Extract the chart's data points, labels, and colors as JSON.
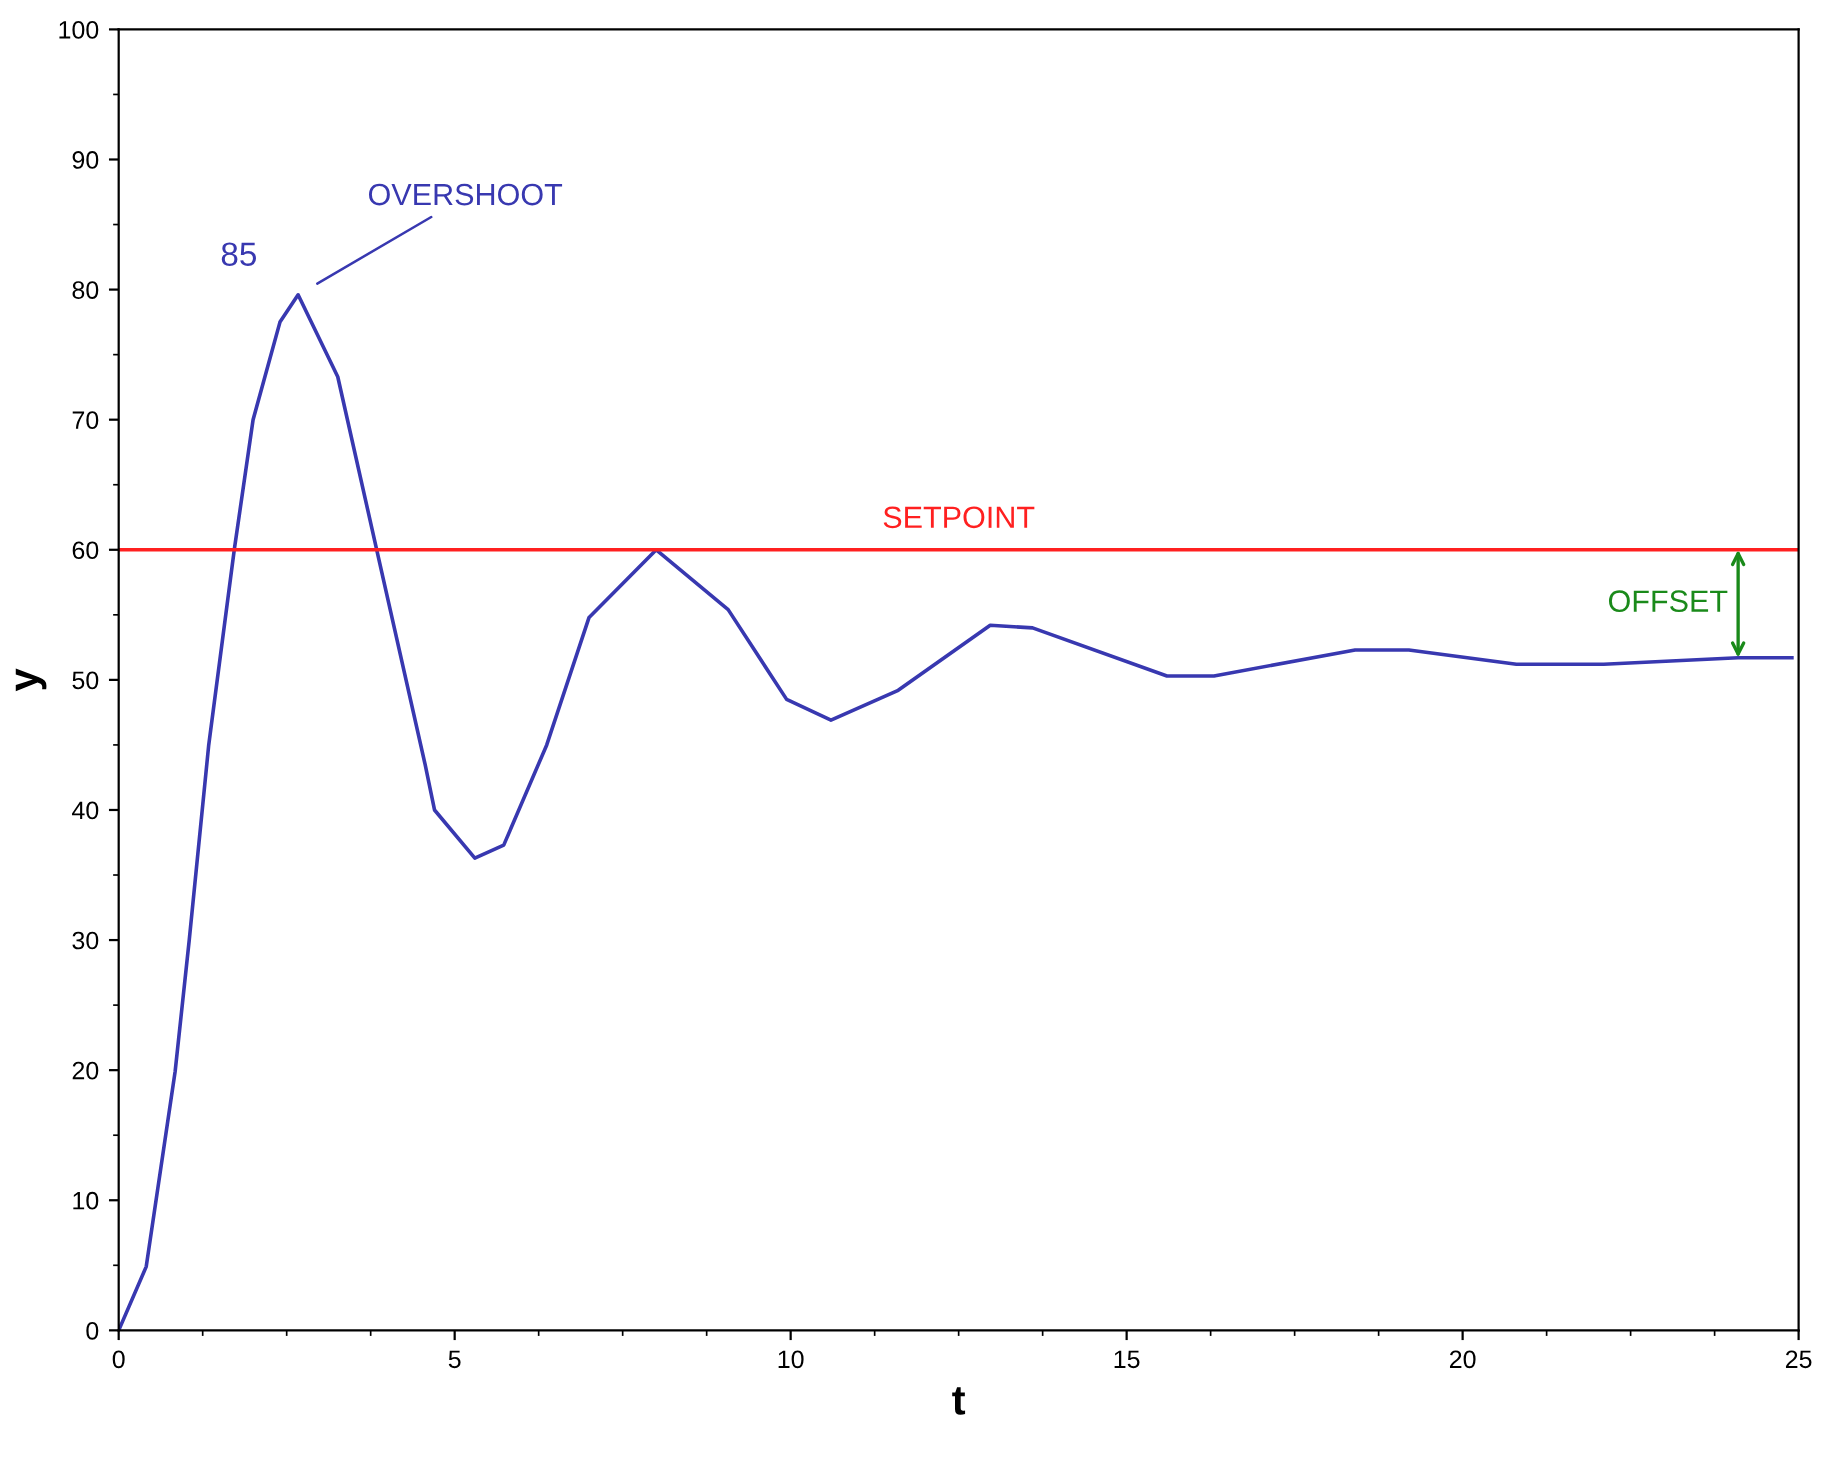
{
  "chart_data": {
    "type": "line",
    "xlabel": "t",
    "ylabel": "y",
    "xlim": [
      0,
      25
    ],
    "xticks": [
      0,
      5,
      10,
      15,
      20,
      25
    ],
    "ylim": [
      0,
      100
    ],
    "yticks": [
      0,
      10,
      20,
      30,
      40,
      50,
      60,
      70,
      80,
      90,
      100
    ],
    "grid": false,
    "legend": false,
    "marker": "none",
    "line_style": "solid",
    "x": [
      0,
      0.41,
      0.84,
      1.05,
      1.34,
      1.72,
      2.0,
      2.4,
      2.67,
      3.26,
      3.84,
      4.56,
      4.7,
      5.3,
      5.73,
      6.37,
      7.0,
      8.0,
      9.07,
      9.94,
      10.6,
      11.6,
      12.97,
      13.6,
      15.6,
      16.3,
      18.4,
      19.2,
      20.8,
      22.1,
      24.1,
      24.9
    ],
    "series": [
      {
        "color": "#3838b0",
        "values": [
          0,
          4.9,
          19.9,
          30,
          45,
          60,
          70,
          77.5,
          79.6,
          73.3,
          60,
          43.5,
          40,
          36.3,
          37.3,
          45,
          54.8,
          60,
          55.4,
          48.5,
          46.9,
          49.2,
          54.2,
          54,
          50.3,
          50.3,
          52.3,
          52.3,
          51.2,
          51.2,
          51.7,
          51.7
        ]
      }
    ],
    "ref_lines": [
      {
        "axis": "y",
        "value": 60,
        "label": "SETPOINT",
        "color": "#ff2020",
        "line_style": "solid"
      }
    ],
    "annotations": [
      "85",
      "OVERSHOOT",
      "OFFSET"
    ]
  }
}
